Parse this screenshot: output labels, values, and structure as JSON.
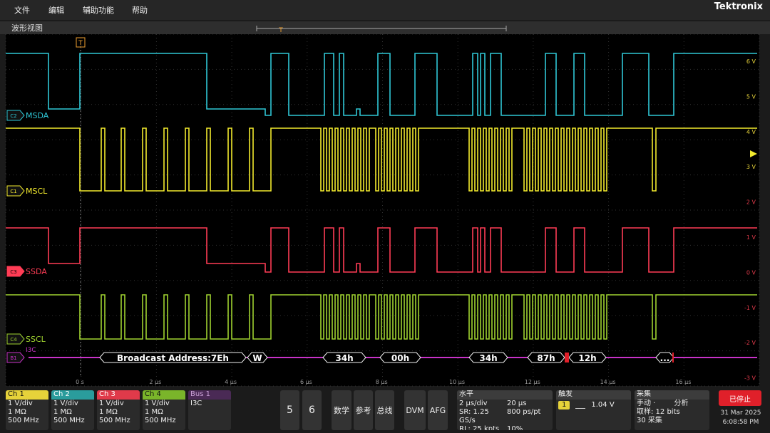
{
  "menu": [
    "文件",
    "编辑",
    "辅助功能",
    "帮助"
  ],
  "brand": "Tektronix",
  "view_title": "波形视图",
  "trigger_marker": "T",
  "channels": [
    {
      "id": "C2",
      "name": "MSDA"
    },
    {
      "id": "C1",
      "name": "MSCL"
    },
    {
      "id": "C3",
      "name": "SSDA"
    },
    {
      "id": "C4",
      "name": "SSCL"
    }
  ],
  "bus": {
    "id": "B1",
    "name": "I3C",
    "packets": [
      "Broadcast Address:7Eh",
      "W",
      "34h",
      "00h",
      "34h",
      "87h",
      "12h",
      "..."
    ]
  },
  "volt_labels": [
    "6 V",
    "5 V",
    "4 V",
    "3 V",
    "2 V",
    "1 V",
    "0 V",
    "-1 V",
    "-2 V",
    "-3 V"
  ],
  "time_labels": [
    "0 s",
    "2 µs",
    "4 µs",
    "6 µs",
    "8 µs",
    "10 µs",
    "12 µs",
    "14 µs",
    "16 µs"
  ],
  "channel_panels": [
    {
      "title": "Ch 1",
      "lines": [
        "1 V/div",
        "1 MΩ",
        "500 MHz"
      ]
    },
    {
      "title": "Ch 2",
      "lines": [
        "1 V/div",
        "1 MΩ",
        "500 MHz"
      ]
    },
    {
      "title": "Ch 3",
      "lines": [
        "1 V/div",
        "1 MΩ",
        "500 MHz"
      ]
    },
    {
      "title": "Ch 4",
      "lines": [
        "1 V/div",
        "1 MΩ",
        "500 MHz"
      ]
    }
  ],
  "bus_panel": {
    "title": "Bus 1",
    "text": "I3C"
  },
  "buttons": [
    "5",
    "6",
    "数学",
    "参考",
    "总线",
    "DVM",
    "AFG"
  ],
  "horizontal": {
    "title": "水平",
    "rows": [
      [
        "2 µs/div",
        "20 µs"
      ],
      [
        "SR: 1.25 GS/s",
        "800 ps/pt"
      ],
      [
        "RL: 25 kpts",
        "10%"
      ]
    ]
  },
  "trigger": {
    "title": "触发",
    "source": "1",
    "level": "1.04 V"
  },
  "acquisition": {
    "title": "采集",
    "rows": [
      [
        "手动 ·",
        "分析"
      ],
      [
        "取样: 12 bits"
      ],
      [
        "30 采集"
      ]
    ]
  },
  "status": "已停止",
  "date": "31 Mar 2025",
  "time": "6:08:58 PM"
}
